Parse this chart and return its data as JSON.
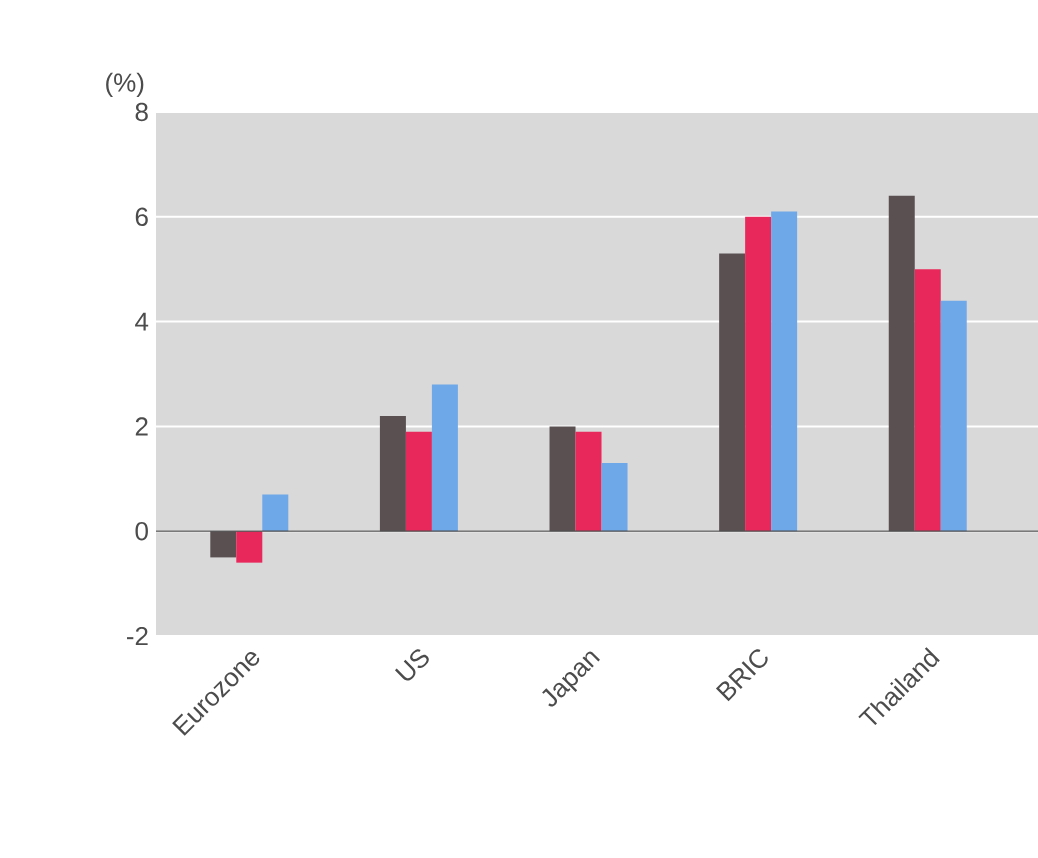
{
  "chart_data": {
    "type": "bar",
    "ylabel": "(%)",
    "categories": [
      "Eurozone",
      "US",
      "Japan",
      "BRIC",
      "Thailand"
    ],
    "series": [
      {
        "color": "#5a5052",
        "values": [
          -0.5,
          2.2,
          2.0,
          5.3,
          6.4
        ]
      },
      {
        "color": "#e8285a",
        "values": [
          -0.6,
          1.9,
          1.9,
          6.0,
          5.0
        ]
      },
      {
        "color": "#6fa8e8",
        "values": [
          0.7,
          2.8,
          1.3,
          6.1,
          4.4
        ]
      }
    ],
    "ylim": [
      -2,
      8
    ],
    "yticks": [
      -2,
      0,
      2,
      4,
      6,
      8
    ],
    "grid": "y",
    "legend": false
  }
}
